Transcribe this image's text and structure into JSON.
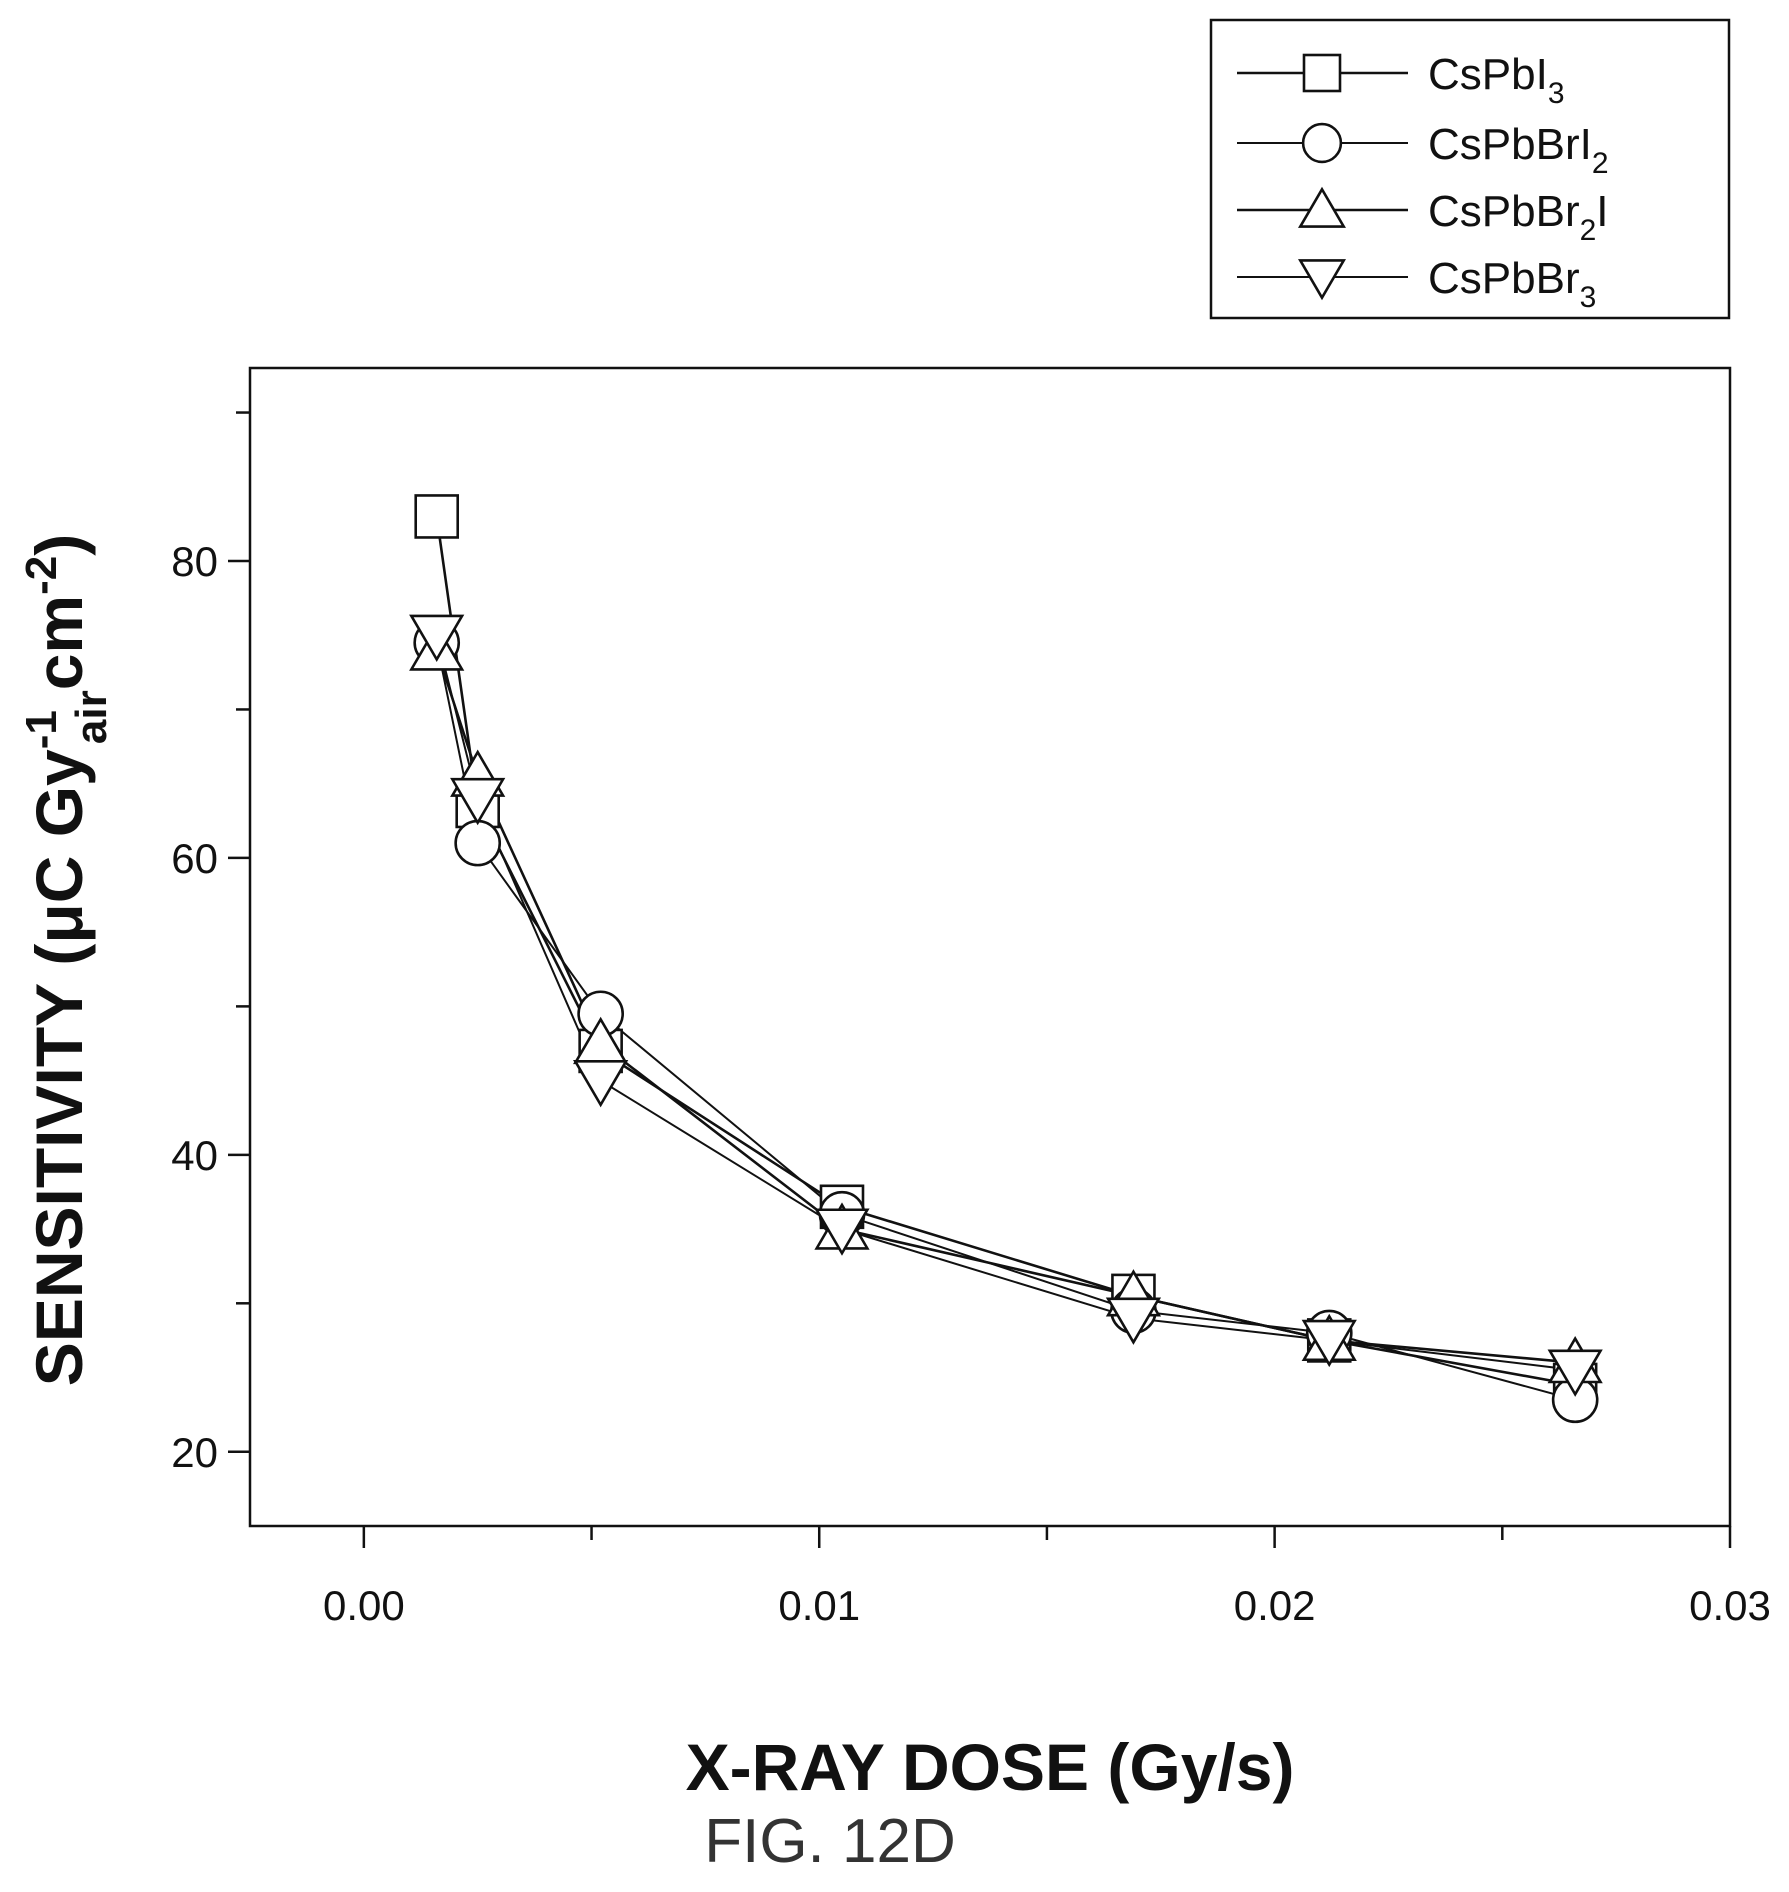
{
  "chart_data": {
    "type": "line",
    "xlabel": "X-RAY DOSE (Gy/s)",
    "ylabel": {
      "prefix": "SENSITIVITY (μC Gy",
      "sup1": "-1",
      "sub1": "air",
      "mid": "cm",
      "sup2": "-2",
      "suffix": ")"
    },
    "xlim": [
      -0.0025,
      0.03
    ],
    "ylim": [
      15,
      93
    ],
    "xticks": [
      {
        "value": 0.0,
        "label": "0.00"
      },
      {
        "value": 0.01,
        "label": "0.01"
      },
      {
        "value": 0.02,
        "label": "0.02"
      },
      {
        "value": 0.03,
        "label": "0.03"
      }
    ],
    "xminor": [
      0.005,
      0.015,
      0.025
    ],
    "yticks": [
      {
        "value": 20,
        "label": "20"
      },
      {
        "value": 40,
        "label": "40"
      },
      {
        "value": 60,
        "label": "60"
      },
      {
        "value": 80,
        "label": "80"
      }
    ],
    "yminor": [
      30,
      50,
      70,
      90
    ],
    "grid": false,
    "legend_position": "top-right, outside plot",
    "series": [
      {
        "name": "CsPbI3",
        "marker": "square",
        "legend_label": {
          "base": "CsPbI",
          "sub": "3",
          "tail": ""
        },
        "x": [
          0.0016,
          0.0025,
          0.0052,
          0.0105,
          0.0169,
          0.0212,
          0.0266
        ],
        "y": [
          83.0,
          63.5,
          47.0,
          36.5,
          30.5,
          27.5,
          24.5
        ]
      },
      {
        "name": "CsPbBrI2",
        "marker": "circle",
        "legend_label": {
          "base": "CsPbBrI",
          "sub": "2",
          "tail": ""
        },
        "x": [
          0.0016,
          0.0025,
          0.0052,
          0.0105,
          0.0169,
          0.0212,
          0.0266
        ],
        "y": [
          74.5,
          61.0,
          49.5,
          36.0,
          29.5,
          28.0,
          23.5
        ]
      },
      {
        "name": "CsPbBr2I",
        "marker": "triangle-up",
        "legend_label": {
          "base": "CsPbBr",
          "sub": "2",
          "tail": "I"
        },
        "x": [
          0.0016,
          0.0025,
          0.0052,
          0.0105,
          0.0169,
          0.0212,
          0.0266
        ],
        "y": [
          74.0,
          65.5,
          47.5,
          35.0,
          30.5,
          27.5,
          26.0
        ]
      },
      {
        "name": "CsPbBr3",
        "marker": "triangle-down",
        "legend_label": {
          "base": "CsPbBr",
          "sub": "3",
          "tail": ""
        },
        "x": [
          0.0016,
          0.0025,
          0.0052,
          0.0105,
          0.0169,
          0.0212,
          0.0266
        ],
        "y": [
          75.0,
          64.0,
          45.0,
          35.0,
          29.0,
          27.5,
          25.5
        ]
      }
    ]
  },
  "caption": "FIG. 12D"
}
